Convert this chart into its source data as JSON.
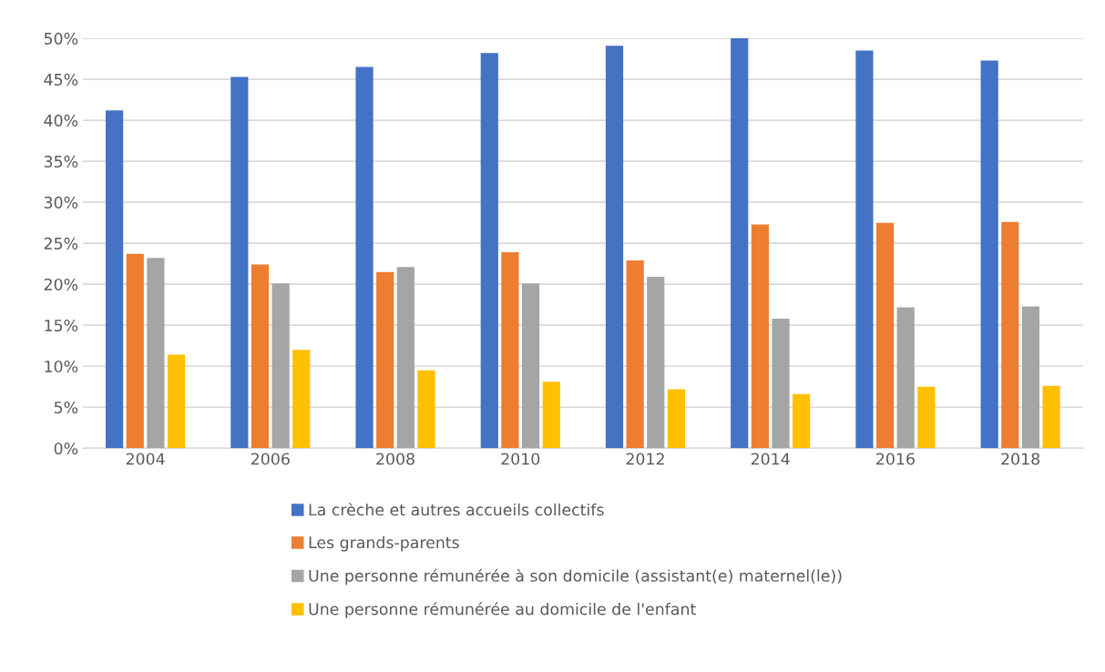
{
  "chart_data": {
    "type": "bar",
    "categories": [
      "2004",
      "2006",
      "2008",
      "2010",
      "2012",
      "2014",
      "2016",
      "2018"
    ],
    "series": [
      {
        "name": "La crèche et autres accueils collectifs",
        "color": "#4472c4",
        "values": [
          41.2,
          45.3,
          46.5,
          48.2,
          49.1,
          50.0,
          48.5,
          47.3
        ]
      },
      {
        "name": "Les grands-parents",
        "color": "#ed7d31",
        "values": [
          23.7,
          22.4,
          21.5,
          23.9,
          22.9,
          27.3,
          27.5,
          27.6
        ]
      },
      {
        "name": "Une personne rémunérée à son domicile (assistant(e) maternel(le))",
        "color": "#a5a5a5",
        "values": [
          23.2,
          20.1,
          22.1,
          20.1,
          20.9,
          15.8,
          17.2,
          17.3
        ]
      },
      {
        "name": "Une personne rémunérée au domicile de l'enfant",
        "color": "#ffc000",
        "values": [
          11.4,
          12.0,
          9.5,
          8.1,
          7.2,
          6.6,
          7.5,
          7.6
        ]
      }
    ],
    "ylim": [
      0,
      50
    ],
    "yticks": [
      {
        "value": 0,
        "label": "0%"
      },
      {
        "value": 5,
        "label": "5%"
      },
      {
        "value": 10,
        "label": "10%"
      },
      {
        "value": 15,
        "label": "15%"
      },
      {
        "value": 20,
        "label": "20%"
      },
      {
        "value": 25,
        "label": "25%"
      },
      {
        "value": 30,
        "label": "30%"
      },
      {
        "value": 35,
        "label": "35%"
      },
      {
        "value": 40,
        "label": "40%"
      },
      {
        "value": 45,
        "label": "45%"
      },
      {
        "value": 50,
        "label": "50%"
      }
    ],
    "grid": "y",
    "legend": "bottom"
  }
}
